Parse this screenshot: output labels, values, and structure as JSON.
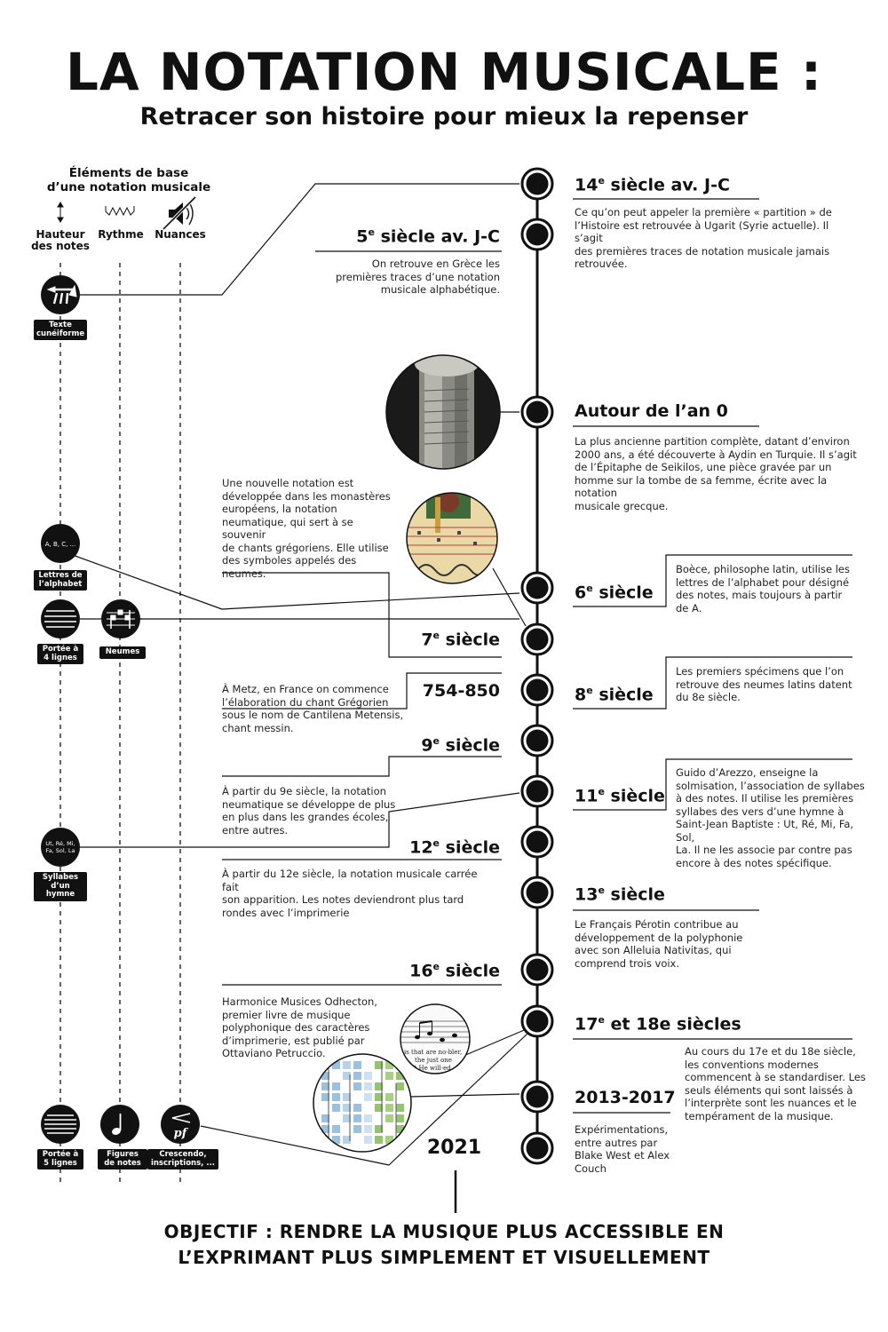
{
  "title": "LA NOTATION MUSICALE :",
  "subtitle": "Retracer son histoire pour mieux la repenser",
  "base_elements": {
    "heading_line1": "Éléments de base",
    "heading_line2": "d’une notation musicale",
    "columns": [
      {
        "label_line1": "Hauteur",
        "label_line2": "des notes",
        "icon": "up-down-arrow-icon"
      },
      {
        "label_line1": "Rythme",
        "label_line2": "",
        "icon": "rhythm-wave-icon"
      },
      {
        "label_line1": "Nuances",
        "label_line2": "",
        "icon": "speaker-icon"
      }
    ]
  },
  "left_badges": [
    {
      "caption_line1": "Texte",
      "caption_line2": "cunéiforme",
      "icon": "cuneiform-icon",
      "inner": ""
    },
    {
      "caption_line1": "Lettres de",
      "caption_line2": "l’alphabet",
      "icon": "letters-icon",
      "inner": "A, B, C, ..."
    },
    {
      "caption_line1": "Portée à",
      "caption_line2": "4 lignes",
      "icon": "staff-4-lines-icon",
      "inner": ""
    },
    {
      "caption_line1": "Neumes",
      "caption_line2": "",
      "icon": "neumes-icon",
      "inner": ""
    },
    {
      "caption_line1": "Syllabes",
      "caption_line2": "d’un hymne",
      "icon": "syllables-icon",
      "inner": "Ut, Ré, Mi, Fa, Sol, La"
    },
    {
      "caption_line1": "Portée à",
      "caption_line2": "5 lignes",
      "icon": "staff-5-lines-icon",
      "inner": ""
    },
    {
      "caption_line1": "Figures",
      "caption_line2": "de notes",
      "icon": "note-icon",
      "inner": ""
    },
    {
      "caption_line1": "Crescendo,",
      "caption_line2": "inscriptions, ...",
      "icon": "crescendo-icon",
      "inner": "pf"
    }
  ],
  "events": [
    {
      "num": "14",
      "sup": "e",
      "rest": " siècle av. J-C",
      "desc": [
        "Ce qu’on peut appeler la première « partition » de",
        "l’Histoire est retrouvée à Ugarit (Syrie actuelle). Il s’agit",
        "des premières traces de notation musicale jamais",
        "retrouvée."
      ]
    },
    {
      "num": "5",
      "sup": "e",
      "rest": " siècle av. J-C",
      "desc": [
        "On retrouve en Grèce les",
        "premières traces d’une notation",
        "musicale alphabétique."
      ]
    },
    {
      "num": "",
      "sup": "",
      "rest": "Autour de l’an 0",
      "desc": [
        "La plus ancienne partition complète, datant d’environ",
        "2000 ans, a été découverte à Aydin en Turquie. Il s’agit",
        "de l’Épitaphe de Seikilos, une pièce gravée par un",
        "homme sur la tombe de sa femme, écrite avec la notation",
        "musicale grecque."
      ]
    },
    {
      "num": "6",
      "sup": "e",
      "rest": " siècle",
      "desc": [
        "Boèce, philosophe latin, utilise les",
        "lettres de l’alphabet pour désigné",
        "des notes, mais toujours à partir",
        "de A."
      ]
    },
    {
      "num": "7",
      "sup": "e",
      "rest": " siècle",
      "desc": [
        "Une nouvelle notation est",
        "développée dans les monastères",
        "européens, la notation",
        "neumatique, qui sert à se souvenir",
        "de chants grégoriens. Elle utilise",
        "des symboles appelés des",
        "neumes."
      ]
    },
    {
      "num": "",
      "sup": "",
      "rest": "754-850",
      "desc": [
        "À Metz, en France on commence",
        "l’élaboration du chant Grégorien",
        "sous le nom de Cantilena Metensis,",
        "chant messin."
      ]
    },
    {
      "num": "8",
      "sup": "e",
      "rest": " siècle",
      "desc": [
        "Les premiers spécimens que l’on",
        "retrouve des neumes latins datent",
        "du 8e siècle."
      ]
    },
    {
      "num": "9",
      "sup": "e",
      "rest": " siècle",
      "desc": [
        "À partir du 9e siècle, la notation",
        "neumatique se développe de plus",
        "en plus dans les grandes écoles,",
        "entre autres."
      ]
    },
    {
      "num": "11",
      "sup": "e",
      "rest": " siècle",
      "desc": [
        "Guido d’Arezzo, enseigne la",
        "solmisation, l’association de syllabes",
        "à des notes. Il utilise les premières",
        "syllabes des vers d’une hymne à",
        "Saint-Jean Baptiste : Ut, Ré, Mi, Fa, Sol,",
        "La. Il ne les associe par contre pas",
        "encore à des notes spécifique."
      ]
    },
    {
      "num": "12",
      "sup": "e",
      "rest": " siècle",
      "desc": [
        "À partir du 12e siècle, la notation musicale carrée fait",
        "son apparition. Les notes deviendront plus tard",
        "rondes avec l’imprimerie"
      ]
    },
    {
      "num": "13",
      "sup": "e",
      "rest": " siècle",
      "desc": [
        "Le Français Pérotin contribue au",
        "développement de la polyphonie",
        "avec son Alleluia Nativitas, qui",
        "comprend trois voix."
      ]
    },
    {
      "num": "16",
      "sup": "e",
      "rest": " siècle",
      "desc": [
        "Harmonice Musices Odhecton,",
        "premier livre de musique",
        "polyphonique des caractères",
        "d’imprimerie, est publié par",
        "Ottaviano Petruccio."
      ]
    },
    {
      "num": "17",
      "sup": "e",
      "rest": " et 18e siècles",
      "desc": [
        "Au cours du 17e et du 18e siècle,",
        "les conventions modernes",
        "commencent à se standardiser. Les",
        "seuls éléments qui sont laissés à",
        "l’interprète sont les nuances et le",
        "tempérament de la musique."
      ]
    },
    {
      "num": "",
      "sup": "",
      "rest": "2013-2017",
      "desc": [
        "Expérimentations,",
        "entre autres par",
        "Blake West et Alex",
        "Couch"
      ]
    },
    {
      "num": "",
      "sup": "",
      "rest": "2021",
      "desc": []
    }
  ],
  "photo_texts": {
    "sheet_lyrics": [
      "is that are no-bler,",
      "the just one",
      "that He will-ed"
    ]
  },
  "objective_line1": "OBJECTIF : RENDRE LA MUSIQUE PLUS ACCESSIBLE EN",
  "objective_line2": "L’EXPRIMANT PLUS SIMPLEMENT ET VISUELLEMENT",
  "colors": {
    "ink": "#111111",
    "text": "#222222",
    "stone": "#9a9a94",
    "parchment": "#e8d9a8",
    "green": "#8fc06a",
    "blue": "#8bb4d8"
  }
}
